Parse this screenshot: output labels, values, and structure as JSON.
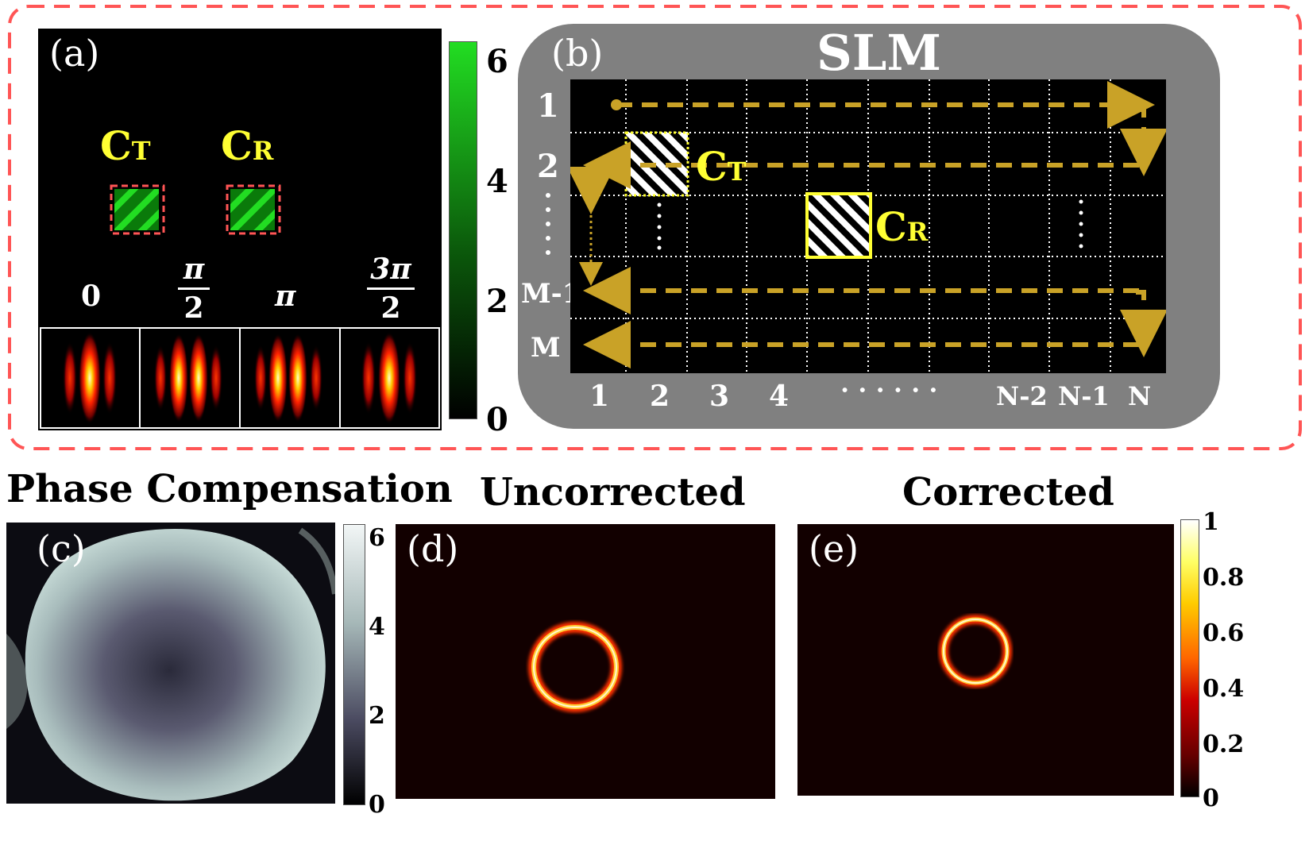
{
  "panel_a": {
    "letter": "(a)",
    "ct_main": "C",
    "ct_sub": "T",
    "cr_main": "C",
    "cr_sub": "R",
    "phase_labels": {
      "p0": "0",
      "p1_num": "π",
      "p1_den": "2",
      "p2": "π",
      "p3_num": "3π",
      "p3_den": "2"
    },
    "colorbar": {
      "ticks": [
        "6",
        "4",
        "2",
        "0"
      ],
      "color_top": "#22dd22",
      "color_bottom": "#000000"
    }
  },
  "panel_b": {
    "letter": "(b)",
    "title": "SLM",
    "rows": [
      "1",
      "2",
      "M-1",
      "M"
    ],
    "cols": [
      "1",
      "2",
      "3",
      "4",
      "N-2",
      "N-1",
      "N"
    ],
    "col_ellipsis": "· · · · · ·",
    "ct_main": "C",
    "ct_sub": "T",
    "cr_main": "C",
    "cr_sub": "R"
  },
  "panel_c": {
    "letter": "(c)",
    "title": "Phase Compensation",
    "colorbar": {
      "ticks": [
        "6",
        "4",
        "2",
        "0"
      ]
    }
  },
  "panel_d": {
    "letter": "(d)",
    "title": "Uncorrected"
  },
  "panel_e": {
    "letter": "(e)",
    "title": "Corrected",
    "colorbar": {
      "ticks": [
        "1",
        "0.8",
        "0.6",
        "0.4",
        "0.2",
        "0"
      ]
    }
  },
  "colors": {
    "dash_border": "#ff5555",
    "slm_gray": "#808080",
    "arrow_gold": "#c9a227",
    "label_yellow": "#ffff33"
  }
}
